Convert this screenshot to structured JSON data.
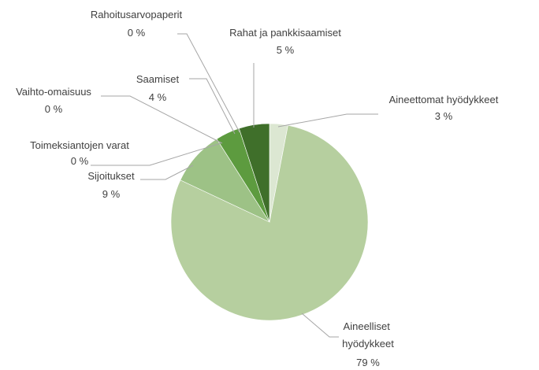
{
  "chart_data": {
    "type": "pie",
    "title": "",
    "slices": [
      {
        "label": "Aineettomat hyödykkeet",
        "percent_label": "3 %",
        "value": 3,
        "color": "#dce7d2"
      },
      {
        "label": "Aineelliset hyödykkeet",
        "percent_label": "79 %",
        "value": 79,
        "color": "#b6cf9f"
      },
      {
        "label": "Sijoitukset",
        "percent_label": "9 %",
        "value": 9,
        "color": "#9dc286"
      },
      {
        "label": "Toimeksiantojen varat",
        "percent_label": "0 %",
        "value": 0,
        "color": "#84b46a"
      },
      {
        "label": "Vaihto-omaisuus",
        "percent_label": "0 %",
        "value": 0,
        "color": "#6ea552"
      },
      {
        "label": "Saamiset",
        "percent_label": "4 %",
        "value": 4,
        "color": "#5d9b3f"
      },
      {
        "label": "Rahoitusarvopaperit",
        "percent_label": "0 %",
        "value": 0,
        "color": "#4f8a34"
      },
      {
        "label": "Rahat ja pankkisaamiset",
        "percent_label": "5 %",
        "value": 5,
        "color": "#3f6f2a"
      }
    ],
    "legend": "none",
    "start_angle": "12 o'clock",
    "direction": "clockwise"
  }
}
